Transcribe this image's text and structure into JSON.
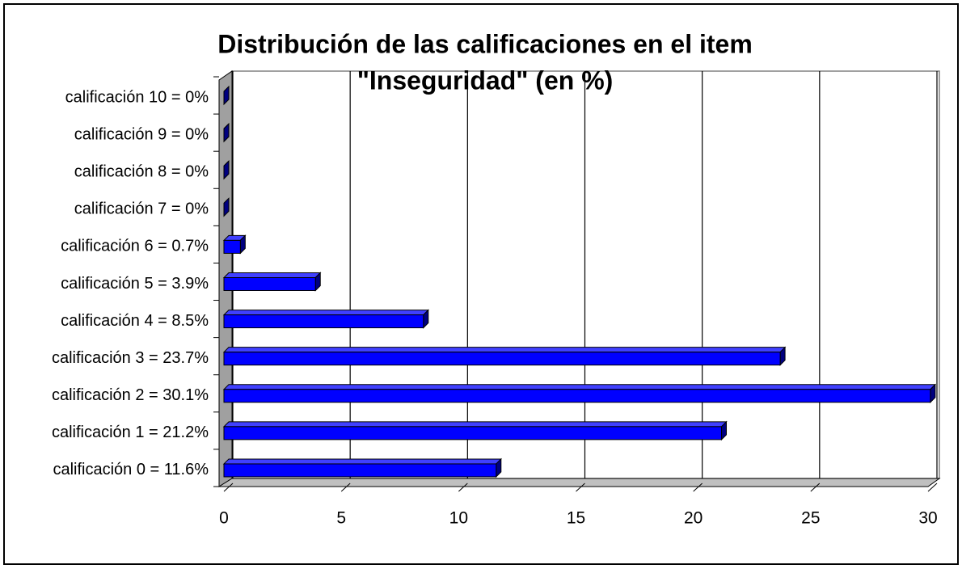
{
  "chart_data": {
    "type": "bar",
    "orientation": "horizontal",
    "title": [
      "Distribución de las calificaciones en el item",
      "\"Inseguridad\" (en %)"
    ],
    "categories": [
      "calificación 0 = 11.6%",
      "calificación 1 = 21.2%",
      "calificación 2 = 30.1%",
      "calificación 3 = 23.7%",
      "calificación 4 = 8.5%",
      "calificación 5 = 3.9%",
      "calificación 6 = 0.7%",
      "calificación 7 = 0%",
      "calificación 8 = 0%",
      "calificación 9 = 0%",
      "calificación 10 = 0%"
    ],
    "values": [
      11.6,
      21.2,
      30.1,
      23.7,
      8.5,
      3.9,
      0.7,
      0,
      0,
      0,
      0
    ],
    "color": "#0000ff",
    "xlim": [
      0,
      30
    ],
    "xticks": [
      0,
      5,
      10,
      15,
      20,
      25,
      30
    ],
    "grid": true
  }
}
